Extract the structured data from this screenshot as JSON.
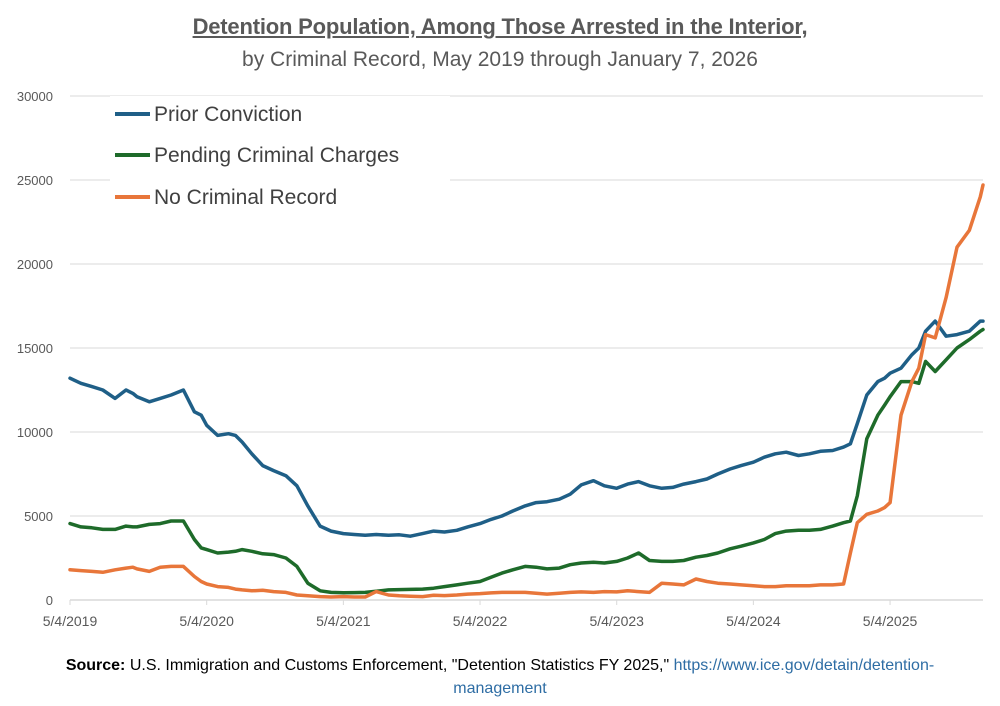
{
  "chart_data": {
    "type": "line",
    "title": "Detention Population, Among Those Arrested in the Interior,",
    "subtitle": "by Criminal Record, May 2019 through January 7, 2026",
    "xlabel": "",
    "ylabel": "",
    "ylim": [
      0,
      30000
    ],
    "xlim": [
      2019.34,
      2026.02
    ],
    "yticks": [
      "0",
      "5000",
      "10000",
      "15000",
      "20000",
      "25000",
      "30000"
    ],
    "ytick_values": [
      0,
      5000,
      10000,
      15000,
      20000,
      25000,
      30000
    ],
    "xticks": [
      "5/4/2019",
      "5/4/2020",
      "5/4/2021",
      "5/4/2022",
      "5/4/2023",
      "5/4/2024",
      "5/4/2025"
    ],
    "xtick_values": [
      2019.34,
      2020.34,
      2021.34,
      2022.34,
      2023.34,
      2024.34,
      2025.34
    ],
    "grid": true,
    "legend_position": "top-left",
    "x": [
      2019.34,
      2019.42,
      2019.5,
      2019.58,
      2019.67,
      2019.75,
      2019.8,
      2019.83,
      2019.92,
      2020.0,
      2020.08,
      2020.17,
      2020.25,
      2020.3,
      2020.34,
      2020.42,
      2020.5,
      2020.55,
      2020.6,
      2020.67,
      2020.75,
      2020.83,
      2020.92,
      2021.0,
      2021.08,
      2021.17,
      2021.25,
      2021.34,
      2021.42,
      2021.5,
      2021.58,
      2021.67,
      2021.75,
      2021.83,
      2021.92,
      2022.0,
      2022.08,
      2022.17,
      2022.25,
      2022.34,
      2022.42,
      2022.5,
      2022.58,
      2022.67,
      2022.75,
      2022.83,
      2022.92,
      2023.0,
      2023.08,
      2023.17,
      2023.25,
      2023.34,
      2023.42,
      2023.5,
      2023.58,
      2023.67,
      2023.75,
      2023.83,
      2023.92,
      2024.0,
      2024.08,
      2024.17,
      2024.25,
      2024.34,
      2024.42,
      2024.5,
      2024.58,
      2024.67,
      2024.75,
      2024.83,
      2024.92,
      2025.0,
      2025.05,
      2025.1,
      2025.17,
      2025.25,
      2025.3,
      2025.34,
      2025.42,
      2025.5,
      2025.55,
      2025.6,
      2025.67,
      2025.75,
      2025.83,
      2025.92,
      2026.0,
      2026.02
    ],
    "series": [
      {
        "name": "Prior Conviction",
        "color": "#1f5f87",
        "values": [
          13200,
          12900,
          12700,
          12500,
          12000,
          12500,
          12300,
          12100,
          11800,
          12000,
          12200,
          12500,
          11200,
          11000,
          10400,
          9800,
          9900,
          9800,
          9400,
          8700,
          8000,
          7700,
          7400,
          6800,
          5600,
          4400,
          4100,
          3950,
          3900,
          3850,
          3900,
          3850,
          3880,
          3800,
          3950,
          4100,
          4050,
          4150,
          4350,
          4550,
          4800,
          5000,
          5300,
          5600,
          5800,
          5850,
          6000,
          6300,
          6850,
          7100,
          6800,
          6650,
          6900,
          7050,
          6800,
          6650,
          6700,
          6900,
          7050,
          7200,
          7500,
          7800,
          8000,
          8200,
          8500,
          8700,
          8800,
          8600,
          8700,
          8850,
          8900,
          9100,
          9300,
          10500,
          12200,
          13000,
          13200,
          13500,
          13800,
          14600,
          15000,
          16000,
          16600,
          15700,
          15800,
          16000,
          16600,
          16600
        ]
      },
      {
        "name": "Pending Criminal Charges",
        "color": "#1e6b2a",
        "values": [
          4550,
          4350,
          4300,
          4200,
          4200,
          4400,
          4350,
          4350,
          4500,
          4550,
          4700,
          4700,
          3600,
          3100,
          3000,
          2800,
          2850,
          2900,
          3000,
          2900,
          2750,
          2700,
          2500,
          2000,
          1000,
          550,
          450,
          430,
          440,
          450,
          520,
          600,
          620,
          630,
          650,
          700,
          800,
          900,
          1000,
          1100,
          1350,
          1600,
          1800,
          2000,
          1950,
          1850,
          1900,
          2100,
          2200,
          2250,
          2200,
          2300,
          2500,
          2800,
          2350,
          2300,
          2300,
          2350,
          2550,
          2650,
          2800,
          3050,
          3200,
          3400,
          3600,
          3950,
          4100,
          4150,
          4150,
          4200,
          4400,
          4600,
          4700,
          6200,
          9600,
          11000,
          11600,
          12100,
          13000,
          13000,
          12900,
          14200,
          13600,
          14300,
          15000,
          15500,
          16000,
          16100
        ]
      },
      {
        "name": "No Criminal Record",
        "color": "#e8763a",
        "values": [
          1800,
          1750,
          1700,
          1650,
          1800,
          1900,
          1950,
          1850,
          1700,
          1950,
          2000,
          2000,
          1400,
          1100,
          950,
          800,
          750,
          650,
          600,
          550,
          580,
          500,
          450,
          300,
          250,
          200,
          180,
          200,
          180,
          180,
          500,
          300,
          250,
          220,
          200,
          280,
          260,
          300,
          350,
          380,
          420,
          450,
          450,
          450,
          400,
          350,
          400,
          450,
          480,
          450,
          500,
          480,
          550,
          500,
          450,
          1000,
          950,
          900,
          1250,
          1100,
          1000,
          950,
          900,
          850,
          800,
          800,
          850,
          850,
          850,
          900,
          900,
          950,
          2800,
          4600,
          5100,
          5300,
          5500,
          5800,
          11000,
          13000,
          13800,
          15800,
          15600,
          18000,
          21000,
          22000,
          24000,
          24700
        ]
      }
    ]
  },
  "source": {
    "label": "Source:",
    "text": " U.S. Immigration and Customs Enforcement, \"Detention Statistics FY 2025,\" ",
    "link_part1": "https://www.ice.gov/detain/detention-",
    "link_part2": "management"
  }
}
